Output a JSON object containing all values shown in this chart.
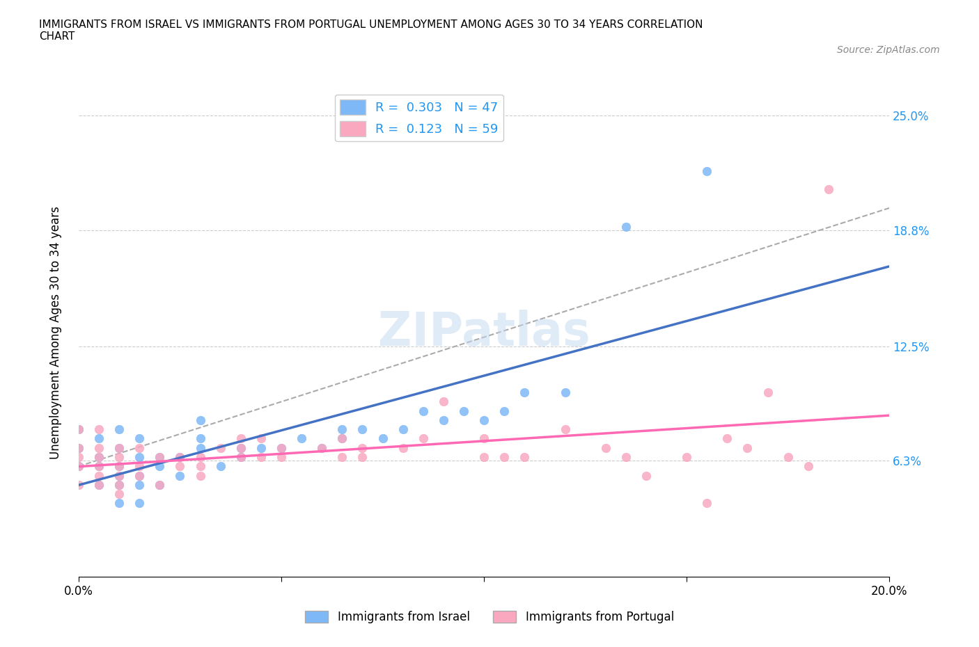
{
  "title": "IMMIGRANTS FROM ISRAEL VS IMMIGRANTS FROM PORTUGAL UNEMPLOYMENT AMONG AGES 30 TO 34 YEARS CORRELATION\nCHART",
  "source_text": "Source: ZipAtlas.com",
  "xlabel": "",
  "ylabel": "Unemployment Among Ages 30 to 34 years",
  "xlim": [
    0.0,
    0.2
  ],
  "ylim": [
    0.0,
    0.265
  ],
  "xticks": [
    0.0,
    0.05,
    0.1,
    0.15,
    0.2
  ],
  "xticklabels": [
    "0.0%",
    "",
    "",
    "",
    "20.0%"
  ],
  "ytick_vals": [
    0.063,
    0.125,
    0.188,
    0.25
  ],
  "ytick_labels": [
    "6.3%",
    "12.5%",
    "18.8%",
    "25.0%"
  ],
  "israel_color": "#7EB8F7",
  "portugal_color": "#F9A8C0",
  "israel_line_color": "#4472C4",
  "portugal_line_color": "#FF69B4",
  "watermark": "ZIPatlas",
  "R_israel": 0.303,
  "N_israel": 47,
  "R_portugal": 0.123,
  "N_portugal": 59,
  "israel_scatter_x": [
    0.0,
    0.0,
    0.0,
    0.005,
    0.005,
    0.005,
    0.005,
    0.01,
    0.01,
    0.01,
    0.01,
    0.01,
    0.01,
    0.015,
    0.015,
    0.015,
    0.015,
    0.015,
    0.02,
    0.02,
    0.02,
    0.025,
    0.025,
    0.03,
    0.03,
    0.03,
    0.035,
    0.04,
    0.04,
    0.045,
    0.05,
    0.055,
    0.06,
    0.065,
    0.065,
    0.07,
    0.075,
    0.08,
    0.085,
    0.09,
    0.095,
    0.1,
    0.105,
    0.11,
    0.12,
    0.135,
    0.155
  ],
  "israel_scatter_y": [
    0.06,
    0.07,
    0.08,
    0.05,
    0.06,
    0.065,
    0.075,
    0.04,
    0.05,
    0.055,
    0.06,
    0.07,
    0.08,
    0.04,
    0.05,
    0.055,
    0.065,
    0.075,
    0.05,
    0.06,
    0.065,
    0.055,
    0.065,
    0.07,
    0.075,
    0.085,
    0.06,
    0.065,
    0.07,
    0.07,
    0.07,
    0.075,
    0.07,
    0.075,
    0.08,
    0.08,
    0.075,
    0.08,
    0.09,
    0.085,
    0.09,
    0.085,
    0.09,
    0.1,
    0.1,
    0.19,
    0.22
  ],
  "portugal_scatter_x": [
    0.0,
    0.0,
    0.0,
    0.0,
    0.0,
    0.005,
    0.005,
    0.005,
    0.005,
    0.005,
    0.005,
    0.01,
    0.01,
    0.01,
    0.01,
    0.01,
    0.01,
    0.015,
    0.015,
    0.015,
    0.02,
    0.02,
    0.025,
    0.025,
    0.03,
    0.03,
    0.03,
    0.035,
    0.04,
    0.04,
    0.04,
    0.045,
    0.045,
    0.05,
    0.05,
    0.06,
    0.065,
    0.065,
    0.07,
    0.07,
    0.08,
    0.085,
    0.09,
    0.1,
    0.1,
    0.105,
    0.11,
    0.12,
    0.13,
    0.135,
    0.14,
    0.15,
    0.155,
    0.16,
    0.165,
    0.17,
    0.175,
    0.18,
    0.185
  ],
  "portugal_scatter_y": [
    0.05,
    0.06,
    0.065,
    0.07,
    0.08,
    0.05,
    0.055,
    0.06,
    0.065,
    0.07,
    0.08,
    0.045,
    0.05,
    0.055,
    0.06,
    0.065,
    0.07,
    0.055,
    0.06,
    0.07,
    0.05,
    0.065,
    0.06,
    0.065,
    0.055,
    0.06,
    0.065,
    0.07,
    0.065,
    0.07,
    0.075,
    0.065,
    0.075,
    0.065,
    0.07,
    0.07,
    0.065,
    0.075,
    0.065,
    0.07,
    0.07,
    0.075,
    0.095,
    0.065,
    0.075,
    0.065,
    0.065,
    0.08,
    0.07,
    0.065,
    0.055,
    0.065,
    0.04,
    0.075,
    0.07,
    0.1,
    0.065,
    0.06,
    0.21
  ]
}
